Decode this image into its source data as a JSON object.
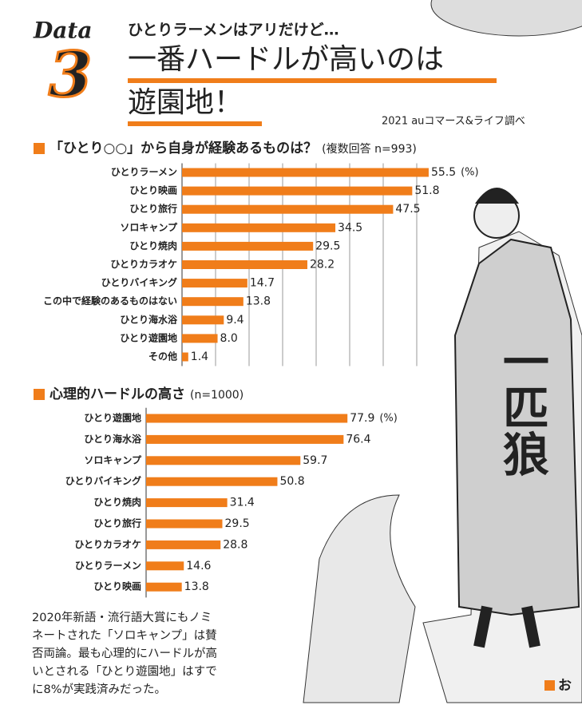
{
  "header": {
    "data_label": "Data",
    "number": "3",
    "kicker": "ひとりラーメンはアリだけど…",
    "headline": [
      "一番ハードルが高いのは",
      "遊園地！"
    ],
    "source": "2021 auコマース&ライフ調べ"
  },
  "chart_data": [
    {
      "type": "hbar",
      "title": "「ひとり○○」から自身が経験あるものは？",
      "subtitle": "(複数回答 n=993)",
      "unit": "(%)",
      "color": "#f07d1a",
      "categories": [
        "ひとりラーメン",
        "ひとり映画",
        "ひとり旅行",
        "ソロキャンプ",
        "ひとり焼肉",
        "ひとりカラオケ",
        "ひとりバイキング",
        "この中で経験のあるものはない",
        "ひとり海水浴",
        "ひとり遊園地",
        "その他"
      ],
      "values": [
        55.5,
        51.8,
        47.5,
        34.5,
        29.5,
        28.2,
        14.7,
        13.8,
        9.4,
        8.0,
        1.4
      ],
      "value_labels": [
        "55.5",
        "51.8",
        "47.5",
        "34.5",
        "29.5",
        "28.2",
        "14.7",
        "13.8",
        "9.4",
        "8.0",
        "1.4"
      ],
      "xlim": [
        0,
        60
      ]
    },
    {
      "type": "hbar",
      "title": "心理的ハードルの高さ",
      "subtitle": "(n=1000)",
      "unit": "(%)",
      "color": "#f07d1a",
      "categories": [
        "ひとり遊園地",
        "ひとり海水浴",
        "ソロキャンプ",
        "ひとりバイキング",
        "ひとり焼肉",
        "ひとり旅行",
        "ひとりカラオケ",
        "ひとりラーメン",
        "ひとり映画"
      ],
      "values": [
        77.9,
        76.4,
        59.7,
        50.8,
        31.4,
        29.5,
        28.8,
        14.6,
        13.8
      ],
      "xlim": [
        0,
        80
      ]
    }
  ],
  "footer": {
    "lines": [
      "2020年新語・流行語大賞にもノミ",
      "ネートされた「ソロキャンプ」は賛",
      "否両論。最も心理的にハードルが高",
      "いとされる「ひとり遊園地」はすで",
      "に8%が実践済みだった。"
    ],
    "corner": "お"
  },
  "illustration": {
    "coat_text": "一匹狼"
  }
}
